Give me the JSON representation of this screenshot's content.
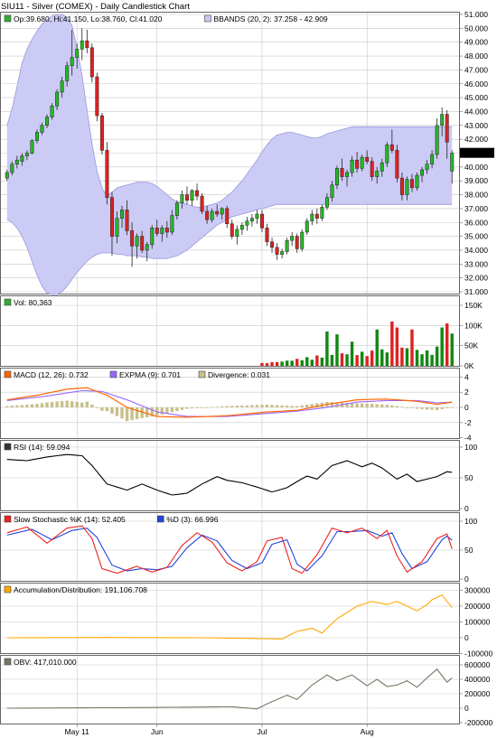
{
  "title": "SIU11 - Silver (COMEX) - Daily Candlestick Chart",
  "colors": {
    "up": "#22bb22",
    "down": "#dd2222",
    "band_fill": "#c8c8f4",
    "band_line": "#9999dd",
    "macd": "#ff6600",
    "expma": "#9966ff",
    "divergence": "#c8c08a",
    "rsi": "#000000",
    "stoch_k": "#ee2222",
    "stoch_d": "#2244dd",
    "ad": "#ffaa00",
    "obv": "#777766",
    "grid": "#c8c8c8"
  },
  "x_labels": [
    {
      "label": "May 11",
      "index": 14
    },
    {
      "label": "Jun",
      "index": 30
    },
    {
      "label": "Jul",
      "index": 51
    },
    {
      "label": "Aug",
      "index": 72
    }
  ],
  "panels": {
    "price": {
      "legend": [
        {
          "text": "Op:39.680, Hi:41.150, Lo:38.760, Cl:41.020",
          "swatch": "#33aa33"
        },
        {
          "text": "BBANDS (20, 2): 37.258 - 42.909",
          "swatch": "#c8c8f4"
        }
      ],
      "ticks": [
        "51.000",
        "50.000",
        "49.000",
        "48.000",
        "47.000",
        "46.000",
        "45.000",
        "44.000",
        "43.000",
        "42.000",
        "41.000",
        "40.000",
        "39.000",
        "38.000",
        "37.000",
        "36.000",
        "35.000",
        "34.000",
        "33.000",
        "32.000",
        "31.000"
      ],
      "last_price": "41.020"
    },
    "volume": {
      "legend": [
        {
          "text": "Vol: 80,363",
          "swatch": "#33aa33"
        }
      ],
      "ticks": [
        "150K",
        "100K",
        "50K",
        "0K"
      ]
    },
    "macd": {
      "legend": [
        {
          "text": "MACD (12, 26): 0.732",
          "swatch": "#ff6600"
        },
        {
          "text": "EXPMA (9): 0.701",
          "swatch": "#9966ff"
        },
        {
          "text": "Divergence: 0.031",
          "swatch": "#c8c08a"
        }
      ],
      "ticks": [
        "4",
        "2",
        "0",
        "-2",
        "-4"
      ]
    },
    "rsi": {
      "legend": [
        {
          "text": "RSI (14): 59.094",
          "swatch": "#333333"
        }
      ],
      "ticks": [
        "100",
        "50",
        "0"
      ]
    },
    "stoch": {
      "legend": [
        {
          "text": "Slow Stochastic %K (14): 52.405",
          "swatch": "#ee2222"
        },
        {
          "text": "%D (3): 66.996",
          "swatch": "#2244dd"
        }
      ],
      "ticks": [
        "100",
        "50",
        "0"
      ]
    },
    "ad": {
      "legend": [
        {
          "text": "Accumulation/Distribution: 191,106.708",
          "swatch": "#ffaa00"
        }
      ],
      "ticks": [
        "300000",
        "200000",
        "100000",
        "0",
        "-100000"
      ]
    },
    "obv": {
      "legend": [
        {
          "text": "OBV: 417,010.000",
          "swatch": "#777766"
        }
      ],
      "ticks": [
        "600000",
        "400000",
        "200000",
        "0",
        "-200000"
      ]
    }
  },
  "chart_data": {
    "type": "candlestick",
    "title": "SIU11 - Silver (COMEX) - Daily Candlestick Chart",
    "count": 90,
    "price_range": [
      30.5,
      51.2
    ],
    "ohlc": [
      [
        39.2,
        39.8,
        39.0,
        39.6
      ],
      [
        39.6,
        40.4,
        39.4,
        40.2
      ],
      [
        40.2,
        40.8,
        39.9,
        40.5
      ],
      [
        40.4,
        41.0,
        40.1,
        40.8
      ],
      [
        40.8,
        41.2,
        40.5,
        41.0
      ],
      [
        41.0,
        42.0,
        40.9,
        41.9
      ],
      [
        41.9,
        42.7,
        41.7,
        42.5
      ],
      [
        42.5,
        43.2,
        42.3,
        43.0
      ],
      [
        43.0,
        43.8,
        42.8,
        43.6
      ],
      [
        43.6,
        44.6,
        43.4,
        44.4
      ],
      [
        44.4,
        45.6,
        44.1,
        45.4
      ],
      [
        45.4,
        46.5,
        45.0,
        46.2
      ],
      [
        46.2,
        47.6,
        45.8,
        47.3
      ],
      [
        47.3,
        49.9,
        46.6,
        47.9
      ],
      [
        47.9,
        48.9,
        47.1,
        48.5
      ],
      [
        48.5,
        50.0,
        47.7,
        49.1
      ],
      [
        49.1,
        49.9,
        48.2,
        48.6
      ],
      [
        48.6,
        48.9,
        46.1,
        46.5
      ],
      [
        46.5,
        46.8,
        43.3,
        43.7
      ],
      [
        43.7,
        43.9,
        40.9,
        41.2
      ],
      [
        41.2,
        41.8,
        37.3,
        37.8
      ],
      [
        37.8,
        38.2,
        33.6,
        35.0
      ],
      [
        35.0,
        36.8,
        34.5,
        36.3
      ],
      [
        36.3,
        37.2,
        35.6,
        36.9
      ],
      [
        36.9,
        37.6,
        35.1,
        35.4
      ],
      [
        35.4,
        36.0,
        32.8,
        34.3
      ],
      [
        34.3,
        35.2,
        33.4,
        35.0
      ],
      [
        35.0,
        35.4,
        33.8,
        34.0
      ],
      [
        34.0,
        34.6,
        33.2,
        34.4
      ],
      [
        34.4,
        35.8,
        34.1,
        35.6
      ],
      [
        35.6,
        36.2,
        35.0,
        35.2
      ],
      [
        35.2,
        35.8,
        34.6,
        35.6
      ],
      [
        35.6,
        36.1,
        34.9,
        35.3
      ],
      [
        35.3,
        36.9,
        35.1,
        36.5
      ],
      [
        36.5,
        37.6,
        36.2,
        37.4
      ],
      [
        37.4,
        38.3,
        37.0,
        38.0
      ],
      [
        38.0,
        38.6,
        37.3,
        37.6
      ],
      [
        37.6,
        38.4,
        37.2,
        38.3
      ],
      [
        38.3,
        38.8,
        37.6,
        37.9
      ],
      [
        37.9,
        38.1,
        36.6,
        36.8
      ],
      [
        36.8,
        37.2,
        35.9,
        36.2
      ],
      [
        36.2,
        37.0,
        36.0,
        36.8
      ],
      [
        36.8,
        37.3,
        36.4,
        36.6
      ],
      [
        36.6,
        37.1,
        36.2,
        37.0
      ],
      [
        37.0,
        37.2,
        35.6,
        35.9
      ],
      [
        35.9,
        36.2,
        34.8,
        35.0
      ],
      [
        35.0,
        35.8,
        34.4,
        35.5
      ],
      [
        35.5,
        36.0,
        35.1,
        35.8
      ],
      [
        35.8,
        36.4,
        35.4,
        36.1
      ],
      [
        36.1,
        36.6,
        35.7,
        36.3
      ],
      [
        36.3,
        36.9,
        35.9,
        36.6
      ],
      [
        36.6,
        36.9,
        35.3,
        35.6
      ],
      [
        35.6,
        35.9,
        34.3,
        34.6
      ],
      [
        34.6,
        34.9,
        33.8,
        34.2
      ],
      [
        34.2,
        34.5,
        33.3,
        33.7
      ],
      [
        33.7,
        34.1,
        33.4,
        33.9
      ],
      [
        33.9,
        34.9,
        33.7,
        34.7
      ],
      [
        34.7,
        35.3,
        34.3,
        35.0
      ],
      [
        35.0,
        35.2,
        33.8,
        34.1
      ],
      [
        34.1,
        35.5,
        33.9,
        35.3
      ],
      [
        35.3,
        36.3,
        35.1,
        36.1
      ],
      [
        36.1,
        36.9,
        35.8,
        36.6
      ],
      [
        36.6,
        37.0,
        35.9,
        36.3
      ],
      [
        36.3,
        37.3,
        36.1,
        37.1
      ],
      [
        37.1,
        38.1,
        36.9,
        37.8
      ],
      [
        37.8,
        39.0,
        37.5,
        38.7
      ],
      [
        38.7,
        40.1,
        38.4,
        39.9
      ],
      [
        39.9,
        40.6,
        39.0,
        39.3
      ],
      [
        39.3,
        39.8,
        38.6,
        39.6
      ],
      [
        39.6,
        40.8,
        39.3,
        40.5
      ],
      [
        40.5,
        41.1,
        39.6,
        39.9
      ],
      [
        39.9,
        40.9,
        39.7,
        40.7
      ],
      [
        40.7,
        41.2,
        40.2,
        40.4
      ],
      [
        40.4,
        40.7,
        39.0,
        39.3
      ],
      [
        39.3,
        40.0,
        38.8,
        39.7
      ],
      [
        39.7,
        40.6,
        39.3,
        40.3
      ],
      [
        40.3,
        41.8,
        40.0,
        41.6
      ],
      [
        41.6,
        42.7,
        41.0,
        41.2
      ],
      [
        41.2,
        41.6,
        38.9,
        39.2
      ],
      [
        39.2,
        39.6,
        37.6,
        38.0
      ],
      [
        38.0,
        39.3,
        37.6,
        39.1
      ],
      [
        39.1,
        39.5,
        38.2,
        38.5
      ],
      [
        38.5,
        39.6,
        38.3,
        39.4
      ],
      [
        39.4,
        40.0,
        38.9,
        39.8
      ],
      [
        39.8,
        40.5,
        39.5,
        40.2
      ],
      [
        40.2,
        41.2,
        39.9,
        40.9
      ],
      [
        40.9,
        43.5,
        40.6,
        43.0
      ],
      [
        43.0,
        44.3,
        42.2,
        43.8
      ],
      [
        43.8,
        44.1,
        40.6,
        41.8
      ],
      [
        39.7,
        41.2,
        38.8,
        41.0
      ]
    ],
    "bbands_upper": [
      43.0,
      44.2,
      45.8,
      47.5,
      48.5,
      49.2,
      49.8,
      50.3,
      50.6,
      50.9,
      51.0,
      51.0,
      50.8,
      50.2,
      48.6,
      46.6,
      44.1,
      41.7,
      39.7,
      38.5,
      37.9,
      38.2,
      38.5,
      38.6,
      38.7,
      38.8,
      38.9,
      38.9,
      38.9,
      38.8,
      38.6,
      38.3,
      38.0,
      37.7,
      37.5,
      37.4,
      37.3,
      37.2,
      37.1,
      37.1,
      37.2,
      37.3,
      37.4,
      37.6,
      37.9,
      38.2,
      38.6,
      39.0,
      39.5,
      40.0,
      40.5,
      41.1,
      41.6,
      42.0,
      42.3,
      42.4,
      42.5,
      42.5,
      42.4,
      42.3,
      42.2,
      42.1,
      42.1,
      42.2,
      42.4,
      42.5,
      42.6,
      42.7,
      42.8,
      42.9,
      42.9,
      42.9,
      42.9,
      42.9,
      42.9,
      42.9,
      42.9,
      42.9,
      42.9,
      42.9,
      42.9,
      42.9,
      42.9,
      42.9,
      42.9,
      42.9,
      42.9,
      42.9,
      42.9,
      42.9
    ],
    "bbands_lower": [
      36.2,
      36.0,
      35.6,
      35.0,
      34.2,
      33.2,
      32.2,
      31.4,
      30.9,
      30.8,
      30.8,
      31.0,
      31.4,
      31.9,
      32.4,
      32.8,
      33.2,
      33.5,
      33.7,
      33.8,
      33.8,
      33.8,
      33.7,
      33.7,
      33.6,
      33.6,
      33.6,
      33.5,
      33.5,
      33.4,
      33.4,
      33.4,
      33.4,
      33.5,
      33.6,
      33.8,
      34.0,
      34.3,
      34.6,
      34.9,
      35.2,
      35.5,
      35.8,
      36.0,
      36.2,
      36.4,
      36.5,
      36.6,
      36.7,
      36.8,
      36.9,
      37.0,
      37.1,
      37.2,
      37.3,
      37.3,
      37.3,
      37.3,
      37.3,
      37.3,
      37.3,
      37.3,
      37.3,
      37.3,
      37.3,
      37.3,
      37.3,
      37.3,
      37.3,
      37.3,
      37.3,
      37.3,
      37.3,
      37.3,
      37.3,
      37.3,
      37.3,
      37.3,
      37.3,
      37.3,
      37.3,
      37.3,
      37.3,
      37.3,
      37.3,
      37.3,
      37.3,
      37.3,
      37.3,
      37.3
    ]
  }
}
